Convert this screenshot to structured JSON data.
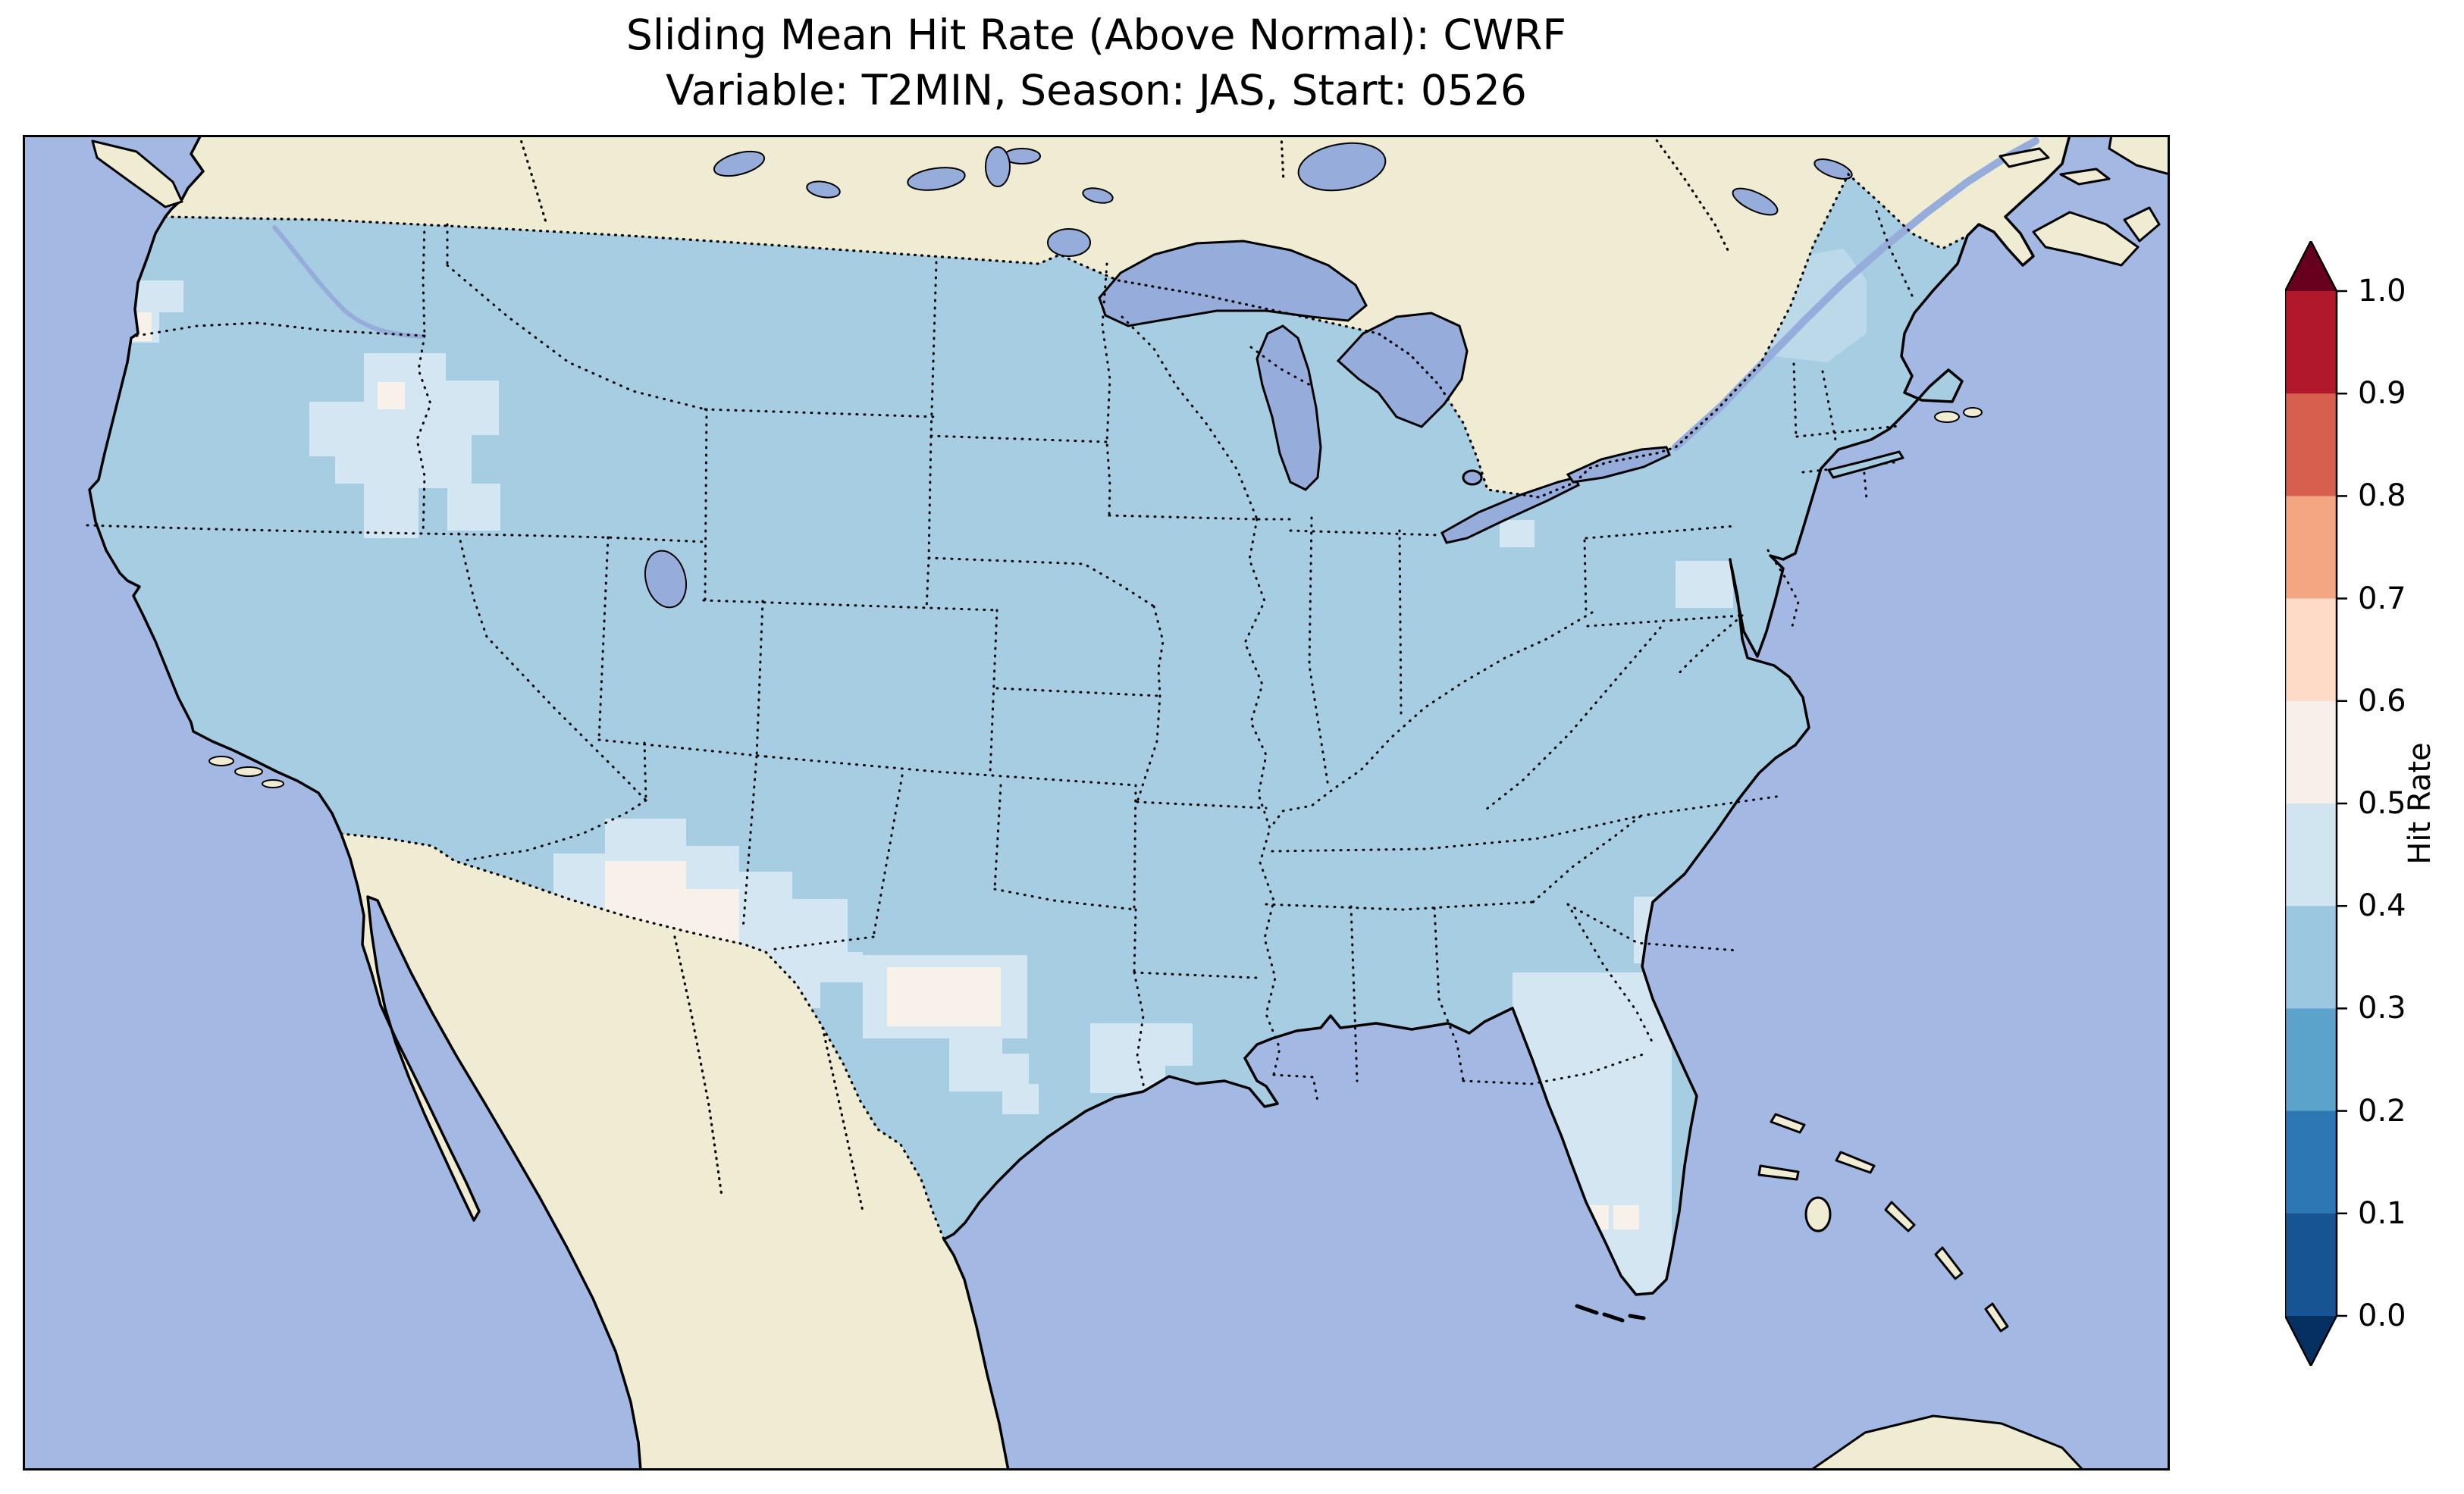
{
  "title": {
    "line1": "Sliding Mean Hit Rate (Above Normal): CWRF",
    "line2": "Variable: T2MIN, Season: JAS, Start: 0526"
  },
  "colorbar": {
    "label": "Hit Rate",
    "tick_labels": [
      "1.0",
      "0.9",
      "0.8",
      "0.7",
      "0.6",
      "0.5",
      "0.4",
      "0.3",
      "0.2",
      "0.1",
      "0.0"
    ],
    "segment_colors_top_to_bottom": [
      "#b2182b",
      "#d6604d",
      "#f4a582",
      "#fddbc7",
      "#f7f0ea",
      "#d1e5f0",
      "#9cc7e0",
      "#5ca3cb",
      "#2e77b5",
      "#175493"
    ],
    "extend_top_color": "#67001f",
    "extend_bottom_color": "#053061"
  },
  "map": {
    "ocean_color": "#a3b9e3",
    "land_color": "#f0ecd4",
    "lake_color": "#96acdb",
    "us_base_color": "#a6cde2",
    "patch_color_04_05": "#d3e6f1",
    "patch_color_05_06": "#f7f1ea",
    "patch_color_mixed": "#bcd9ea",
    "coastline_color": "#000000",
    "border_color": "#000000"
  },
  "chart_data": {
    "type": "heatmap",
    "title": "Sliding Mean Hit Rate (Above Normal): CWRF",
    "subtitle": "Variable: T2MIN, Season: JAS, Start: 0526",
    "model": "CWRF",
    "variable": "T2MIN",
    "season": "JAS",
    "start": "0526",
    "metric": "Sliding Mean Hit Rate (Above Normal)",
    "colorbar": {
      "label": "Hit Rate",
      "ticks": [
        0.0,
        0.1,
        0.2,
        0.3,
        0.4,
        0.5,
        0.6,
        0.7,
        0.8,
        0.9,
        1.0
      ],
      "range": [
        0.0,
        1.0
      ],
      "colormap": "RdBu_r, discrete 0.1 bins",
      "extends": "both"
    },
    "regions": [
      {
        "region": "Most of CONUS",
        "hit_rate": "0.3-0.4"
      },
      {
        "region": "Great Basin (NE Nevada / NW Utah / S Idaho)",
        "hit_rate": "0.4-0.5"
      },
      {
        "region": "Coastal Oregon",
        "hit_rate": "0.4-0.5"
      },
      {
        "region": "Southern New Mexico / far west Texas",
        "hit_rate": "0.5-0.6"
      },
      {
        "region": "SE Arizona and west Texas halo around NM core",
        "hit_rate": "0.4-0.5"
      },
      {
        "region": "South-central Texas",
        "hit_rate": "0.5-0.6 core with 0.4-0.5 halo"
      },
      {
        "region": "Coastal Louisiana",
        "hit_rate": "0.4-0.5"
      },
      {
        "region": "Florida peninsula",
        "hit_rate": "0.4-0.5 with isolated 0.5-0.6 cells"
      },
      {
        "region": "Georgia / northeast Florida coast",
        "hit_rate": "0.4-0.5"
      },
      {
        "region": "Chesapeake Bay area (eastern Virginia)",
        "hit_rate": "0.4-0.5"
      },
      {
        "region": "New England",
        "hit_rate": "0.35-0.45 mixed"
      }
    ],
    "notes": "Values shown only over CONUS; Canada and Mexico are masked land, oceans and Great Lakes unshaded."
  }
}
